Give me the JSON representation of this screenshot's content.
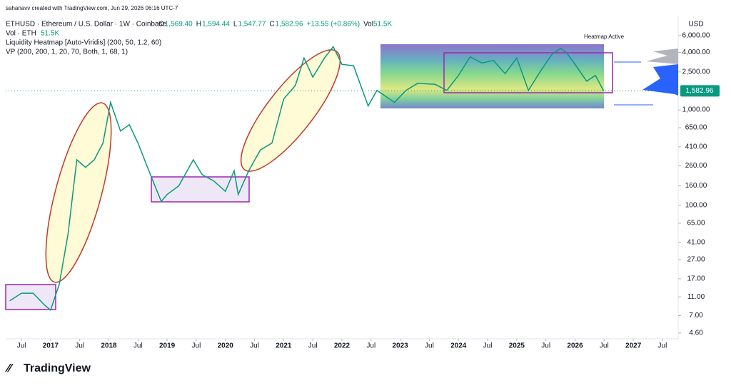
{
  "header": {
    "credit": "sahanavv created with TradingView.com, Jun 29, 2026 06:16 UTC-7",
    "symbol": "ETHUSD · Ethereum / U.S. Dollar · 1W · Coinbase",
    "ohlc": [
      [
        "O",
        "1,569.40"
      ],
      [
        "H",
        "1,594.44"
      ],
      [
        "L",
        "1,547.77"
      ],
      [
        "C",
        "1,582.96"
      ]
    ],
    "change": "+13.55 (+0.86%)",
    "vol_label": "Vol",
    "vol_value": "51.5K",
    "vol_row": "Vol · ETH",
    "vol_row_value": "51.5K",
    "indicator_1": "Liquidity Heatmap [Auto-Viridis] (200, 50, 1.2, 60)",
    "indicator_2": "VP (200, 200, 1, 20, 70, Both, 1, 68, 1)",
    "heatmap_note": "Heatmap Active",
    "currency": "USD",
    "logo": "TradingView"
  },
  "chart_data": {
    "type": "line",
    "log_scale": true,
    "grid": false,
    "xlim": [
      2016.23,
      2027.77
    ],
    "ylim": [
      4,
      9700
    ],
    "xticks": [
      {
        "value": 2016.5,
        "label": "Jul"
      },
      2017,
      {
        "value": 2017.5,
        "label": "Jul"
      },
      2018,
      {
        "value": 2018.5,
        "label": "Jul"
      },
      2019,
      {
        "value": 2019.5,
        "label": "Jul"
      },
      2020,
      {
        "value": 2020.5,
        "label": "Jul"
      },
      2021,
      {
        "value": 2021.5,
        "label": "Jul"
      },
      2022,
      {
        "value": 2022.5,
        "label": "Jul"
      },
      2023,
      {
        "value": 2023.5,
        "label": "Jul"
      },
      2024,
      {
        "value": 2024.5,
        "label": "Jul"
      },
      2025,
      {
        "value": 2025.5,
        "label": "Jul"
      },
      2026,
      {
        "value": 2026.5,
        "label": "Jul"
      },
      2027,
      {
        "value": 2027.5,
        "label": "Jul"
      }
    ],
    "yticks": [
      {
        "value": 4.6,
        "label": "4.60"
      },
      {
        "value": 7,
        "label": "7.00"
      },
      {
        "value": 11,
        "label": "11.00"
      },
      {
        "value": 17,
        "label": "17.00"
      },
      {
        "value": 27,
        "label": "27.00"
      },
      {
        "value": 41,
        "label": "41.00"
      },
      {
        "value": 65,
        "label": "65.00"
      },
      {
        "value": 100,
        "label": "100.00"
      },
      {
        "value": 160,
        "label": "160.00"
      },
      {
        "value": 260,
        "label": "260.00"
      },
      {
        "value": 410,
        "label": "410.00"
      },
      {
        "value": 650,
        "label": "650.00"
      },
      {
        "value": 1000,
        "label": "1,000.00"
      },
      {
        "value": 2500,
        "label": "2,500.00"
      },
      {
        "value": 4000,
        "label": "4,000.00"
      },
      {
        "value": 6000,
        "label": "6,000.00"
      }
    ],
    "last_price": {
      "value": 1582.96,
      "label": "1,582.96"
    },
    "x": [
      2016.3,
      2016.5,
      2016.7,
      2016.9,
      2017.0,
      2017.15,
      2017.3,
      2017.45,
      2017.6,
      2017.75,
      2017.9,
      2018.03,
      2018.2,
      2018.35,
      2018.5,
      2018.7,
      2018.9,
      2019.0,
      2019.2,
      2019.45,
      2019.6,
      2019.8,
      2020.0,
      2020.15,
      2020.22,
      2020.4,
      2020.6,
      2020.8,
      2021.0,
      2021.2,
      2021.35,
      2021.5,
      2021.7,
      2021.85,
      2022.0,
      2022.2,
      2022.45,
      2022.6,
      2022.9,
      2023.1,
      2023.3,
      2023.6,
      2023.8,
      2024.0,
      2024.2,
      2024.4,
      2024.6,
      2024.8,
      2025.0,
      2025.2,
      2025.4,
      2025.6,
      2025.75,
      2025.85,
      2026.0,
      2026.2,
      2026.35,
      2026.49
    ],
    "series": [
      {
        "name": "ETHUSD",
        "color": "#089981",
        "values": [
          10,
          12,
          12,
          9,
          8,
          15,
          50,
          300,
          250,
          300,
          450,
          1200,
          600,
          700,
          450,
          220,
          110,
          130,
          160,
          300,
          210,
          180,
          140,
          230,
          130,
          230,
          380,
          450,
          1300,
          1800,
          3500,
          2200,
          3500,
          4600,
          3000,
          2900,
          1100,
          1600,
          1200,
          1600,
          1900,
          1850,
          1600,
          2300,
          3600,
          3100,
          3300,
          2400,
          3500,
          1600,
          2500,
          3800,
          4400,
          4000,
          3000,
          2000,
          2300,
          1582.96
        ]
      }
    ]
  }
}
